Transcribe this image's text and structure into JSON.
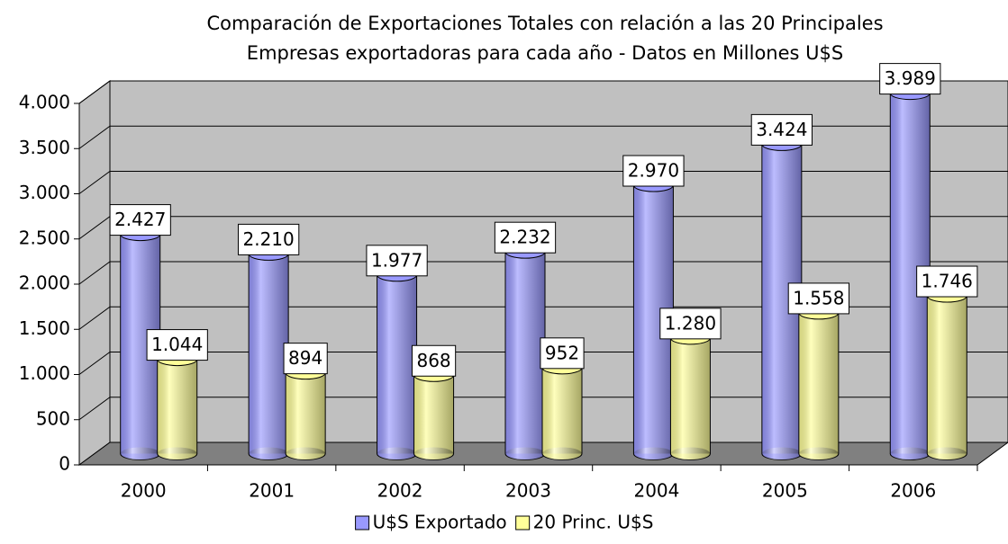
{
  "chart_data": {
    "type": "bar",
    "title": [
      "Comparación de Exportaciones Totales con relación a las 20 Principales",
      "Empresas exportadoras para cada año - Datos en Millones U$S"
    ],
    "categories": [
      "2000",
      "2001",
      "2002",
      "2003",
      "2004",
      "2005",
      "2006"
    ],
    "series": [
      {
        "name": "U$S Exportado",
        "color": "#9999ff",
        "values": [
          2427,
          2210,
          1977,
          2232,
          2970,
          3424,
          3989
        ],
        "value_labels": [
          "2.427",
          "2.210",
          "1.977",
          "2.232",
          "2.970",
          "3.424",
          "3.989"
        ]
      },
      {
        "name": "20 Princ. U$S",
        "color": "#ffff99",
        "values": [
          1044,
          894,
          868,
          952,
          1280,
          1558,
          1746
        ],
        "value_labels": [
          "1.044",
          "894",
          "868",
          "952",
          "1.280",
          "1.558",
          "1.746"
        ]
      }
    ],
    "ylim": [
      0,
      4000
    ],
    "yticks": [
      0,
      500,
      {
        "value": 1000,
        "label": "1.000"
      },
      {
        "value": 1500,
        "label": "1.500"
      },
      {
        "value": 2000,
        "label": "2.000"
      },
      {
        "value": 2500,
        "label": "2.500"
      },
      {
        "value": 3000,
        "label": "3.000"
      },
      {
        "value": 3500,
        "label": "3.500"
      },
      {
        "value": 4000,
        "label": "4.000"
      }
    ],
    "grid": true,
    "legend": "bottom"
  }
}
